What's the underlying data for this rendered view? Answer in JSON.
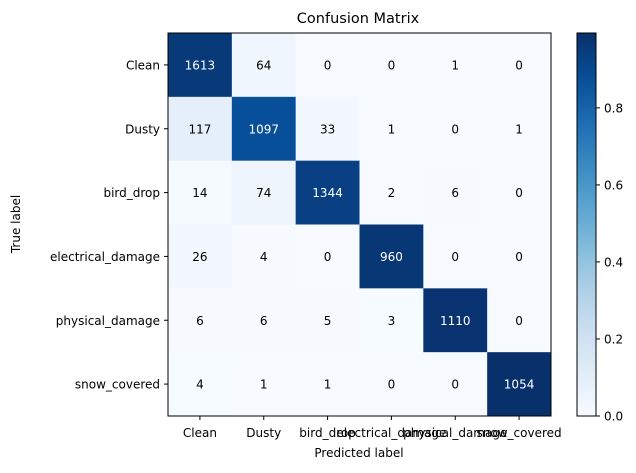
{
  "chart_data": {
    "type": "heatmap",
    "title": "Confusion Matrix",
    "xlabel": "Predicted label",
    "ylabel": "True label",
    "row_labels": [
      "Clean",
      "Dusty",
      "bird_drop",
      "electrical_damage",
      "physical_damage",
      "snow_covered"
    ],
    "col_labels": [
      "Clean",
      "Dusty",
      "bird_drop",
      "electrical_damage",
      "physical_damage",
      "snow_covered"
    ],
    "values": [
      [
        1613,
        64,
        0,
        0,
        1,
        0
      ],
      [
        117,
        1097,
        33,
        1,
        0,
        1
      ],
      [
        14,
        74,
        1344,
        2,
        6,
        0
      ],
      [
        26,
        4,
        0,
        960,
        0,
        0
      ],
      [
        6,
        6,
        5,
        3,
        1110,
        0
      ],
      [
        4,
        1,
        1,
        0,
        0,
        1054
      ]
    ],
    "colormap": "Blues",
    "color_scale": "row-normalized",
    "colorbar": {
      "range": [
        0,
        1
      ],
      "ticks": [
        "0.0",
        "0.2",
        "0.4",
        "0.6",
        "0.8"
      ],
      "tick_values": [
        0,
        0.2,
        0.4,
        0.6,
        0.8
      ]
    },
    "grid": false,
    "colors": {
      "low": "#f7fbff",
      "high": "#08306b",
      "text_dark": "#000000",
      "text_light": "#ffffff"
    }
  }
}
